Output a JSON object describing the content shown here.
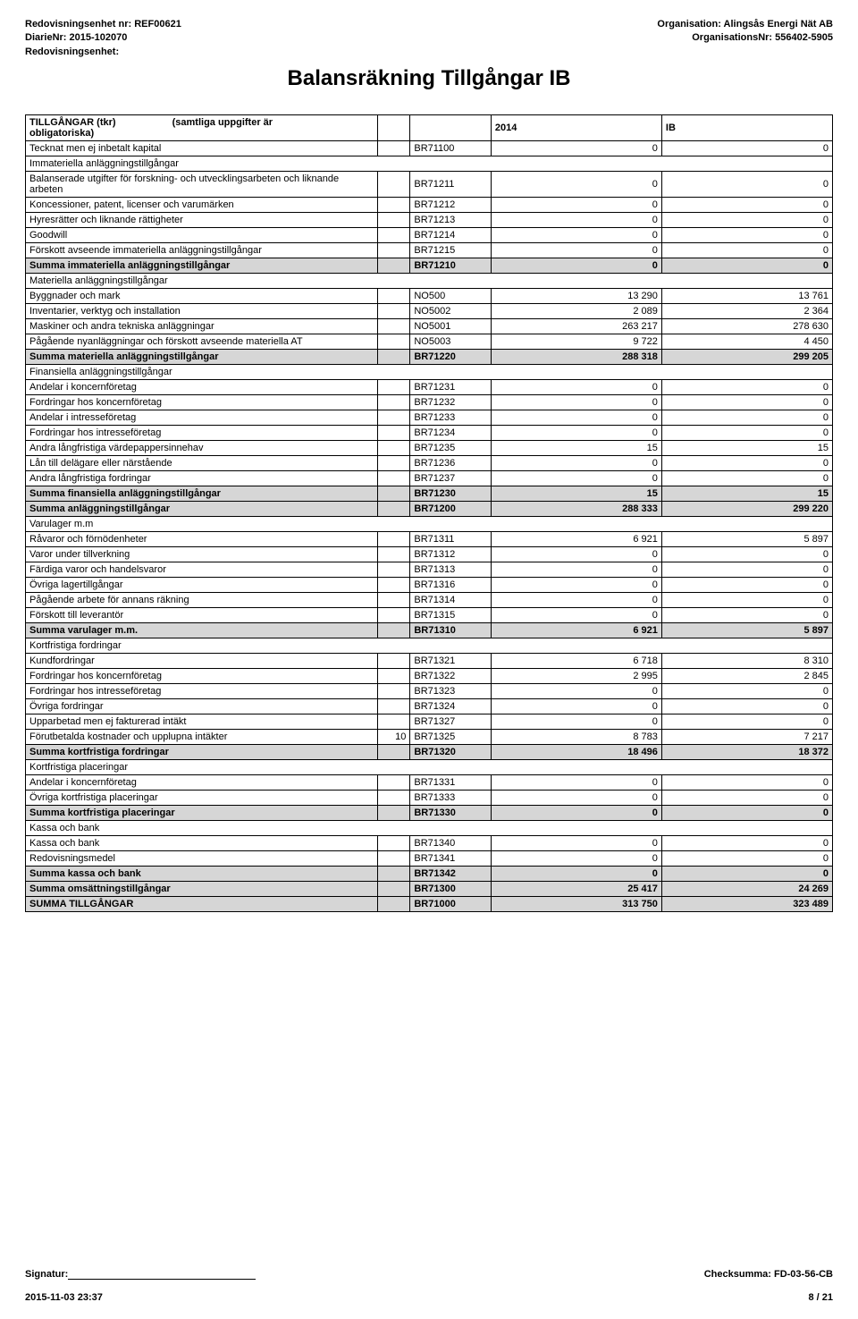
{
  "header": {
    "left": {
      "unit_line": "Redovisningsenhet nr: REF00621",
      "diarie_line": "DiarieNr: 2015-102070",
      "unit_label": "Redovisningsenhet:"
    },
    "right": {
      "org_line": "Organisation: Alingsås Energi Nät AB",
      "orgnr_line": "OrganisationsNr: 556402-5905"
    }
  },
  "title": "Balansräkning Tillgångar IB",
  "table": {
    "head": {
      "c1a": "TILLGÅNGAR (tkr)",
      "c1b": "obligatoriska)",
      "c1c": "(samtliga uppgifter är",
      "c2": "",
      "c3": "",
      "c4": "2014",
      "c5": "IB"
    },
    "rows": [
      {
        "label": "Tecknat men ej inbetalt kapital",
        "note": "",
        "code": "BR71100",
        "v1": "0",
        "v2": "0"
      },
      {
        "label": "Immateriella anläggningstillgångar",
        "section": true
      },
      {
        "label": "Balanserade utgifter för forskning- och utvecklingsarbeten och liknande arbeten",
        "note": "",
        "code": "BR71211",
        "v1": "0",
        "v2": "0"
      },
      {
        "label": "Koncessioner, patent, licenser och varumärken",
        "note": "",
        "code": "BR71212",
        "v1": "0",
        "v2": "0"
      },
      {
        "label": "Hyresrätter och liknande rättigheter",
        "note": "",
        "code": "BR71213",
        "v1": "0",
        "v2": "0"
      },
      {
        "label": "Goodwill",
        "note": "",
        "code": "BR71214",
        "v1": "0",
        "v2": "0"
      },
      {
        "label": "Förskott avseende immateriella anläggningstillgångar",
        "note": "",
        "code": "BR71215",
        "v1": "0",
        "v2": "0"
      },
      {
        "label": "Summa immateriella anläggningstillgångar",
        "note": "",
        "code": "BR71210",
        "v1": "0",
        "v2": "0",
        "shaded": true
      },
      {
        "label": "Materiella anläggningstillgångar",
        "section": true
      },
      {
        "label": "Byggnader och mark",
        "note": "",
        "code": "NO500",
        "v1": "13 290",
        "v2": "13 761"
      },
      {
        "label": "Inventarier, verktyg och installation",
        "note": "",
        "code": "NO5002",
        "v1": "2 089",
        "v2": "2 364"
      },
      {
        "label": "Maskiner och andra tekniska anläggningar",
        "note": "",
        "code": "NO5001",
        "v1": "263 217",
        "v2": "278 630"
      },
      {
        "label": "Pågående nyanläggningar och förskott avseende materiella AT",
        "note": "",
        "code": "NO5003",
        "v1": "9 722",
        "v2": "4 450"
      },
      {
        "label": "Summa materiella anläggningstillgångar",
        "note": "",
        "code": "BR71220",
        "v1": "288 318",
        "v2": "299 205",
        "shaded": true
      },
      {
        "label": "Finansiella anläggningstillgångar",
        "section": true
      },
      {
        "label": "Andelar i koncernföretag",
        "note": "",
        "code": "BR71231",
        "v1": "0",
        "v2": "0"
      },
      {
        "label": "Fordringar hos koncernföretag",
        "note": "",
        "code": "BR71232",
        "v1": "0",
        "v2": "0"
      },
      {
        "label": "Andelar i intresseföretag",
        "note": "",
        "code": "BR71233",
        "v1": "0",
        "v2": "0"
      },
      {
        "label": "Fordringar hos intresseföretag",
        "note": "",
        "code": "BR71234",
        "v1": "0",
        "v2": "0"
      },
      {
        "label": "Andra långfristiga värdepappersinnehav",
        "note": "",
        "code": "BR71235",
        "v1": "15",
        "v2": "15"
      },
      {
        "label": "Lån till delägare eller närstående",
        "note": "",
        "code": "BR71236",
        "v1": "0",
        "v2": "0"
      },
      {
        "label": "Andra långfristiga fordringar",
        "note": "",
        "code": "BR71237",
        "v1": "0",
        "v2": "0"
      },
      {
        "label": "Summa finansiella anläggningstillgångar",
        "note": "",
        "code": "BR71230",
        "v1": "15",
        "v2": "15",
        "shaded": true
      },
      {
        "label": "Summa anläggningstillgångar",
        "note": "",
        "code": "BR71200",
        "v1": "288 333",
        "v2": "299 220",
        "shaded": true
      },
      {
        "label": "Varulager m.m",
        "section": true
      },
      {
        "label": "Råvaror och förnödenheter",
        "note": "",
        "code": "BR71311",
        "v1": "6 921",
        "v2": "5 897"
      },
      {
        "label": "Varor under tillverkning",
        "note": "",
        "code": "BR71312",
        "v1": "0",
        "v2": "0"
      },
      {
        "label": "Färdiga varor och handelsvaror",
        "note": "",
        "code": "BR71313",
        "v1": "0",
        "v2": "0"
      },
      {
        "label": "Övriga lagertillgångar",
        "note": "",
        "code": "BR71316",
        "v1": "0",
        "v2": "0"
      },
      {
        "label": "Pågående arbete för annans räkning",
        "note": "",
        "code": "BR71314",
        "v1": "0",
        "v2": "0"
      },
      {
        "label": "Förskott till leverantör",
        "note": "",
        "code": "BR71315",
        "v1": "0",
        "v2": "0"
      },
      {
        "label": "Summa varulager m.m.",
        "note": "",
        "code": "BR71310",
        "v1": "6 921",
        "v2": "5 897",
        "shaded": true
      },
      {
        "label": "Kortfristiga fordringar",
        "section": true
      },
      {
        "label": "Kundfordringar",
        "note": "",
        "code": "BR71321",
        "v1": "6 718",
        "v2": "8 310"
      },
      {
        "label": "Fordringar hos koncernföretag",
        "note": "",
        "code": "BR71322",
        "v1": "2 995",
        "v2": "2 845"
      },
      {
        "label": "Fordringar hos intresseföretag",
        "note": "",
        "code": "BR71323",
        "v1": "0",
        "v2": "0"
      },
      {
        "label": "Övriga fordringar",
        "note": "",
        "code": "BR71324",
        "v1": "0",
        "v2": "0"
      },
      {
        "label": "Upparbetad men ej fakturerad intäkt",
        "note": "",
        "code": "BR71327",
        "v1": "0",
        "v2": "0"
      },
      {
        "label": "Förutbetalda kostnader och upplupna intäkter",
        "note": "10",
        "code": "BR71325",
        "v1": "8 783",
        "v2": "7 217"
      },
      {
        "label": "Summa kortfristiga fordringar",
        "note": "",
        "code": "BR71320",
        "v1": "18 496",
        "v2": "18 372",
        "shaded": true
      },
      {
        "label": "Kortfristiga placeringar",
        "section": true
      },
      {
        "label": "Andelar i koncernföretag",
        "note": "",
        "code": "BR71331",
        "v1": "0",
        "v2": "0"
      },
      {
        "label": "Övriga kortfristiga placeringar",
        "note": "",
        "code": "BR71333",
        "v1": "0",
        "v2": "0"
      },
      {
        "label": "Summa kortfristiga placeringar",
        "note": "",
        "code": "BR71330",
        "v1": "0",
        "v2": "0",
        "shaded": true
      },
      {
        "label": "Kassa och bank",
        "section": true
      },
      {
        "label": "Kassa och bank",
        "note": "",
        "code": "BR71340",
        "v1": "0",
        "v2": "0"
      },
      {
        "label": "Redovisningsmedel",
        "note": "",
        "code": "BR71341",
        "v1": "0",
        "v2": "0"
      },
      {
        "label": "Summa kassa och bank",
        "note": "",
        "code": "BR71342",
        "v1": "0",
        "v2": "0",
        "shaded": true
      },
      {
        "label": "Summa omsättningstillgångar",
        "note": "",
        "code": "BR71300",
        "v1": "25 417",
        "v2": "24 269",
        "shaded": true
      },
      {
        "label": "SUMMA TILLGÅNGAR",
        "note": "",
        "code": "BR71000",
        "v1": "313 750",
        "v2": "323 489",
        "shaded": true
      }
    ]
  },
  "footer": {
    "sig_label": "Signatur:",
    "checksum": "Checksumma: FD-03-56-CB",
    "timestamp": "2015-11-03  23:37",
    "page": "8 / 21"
  }
}
